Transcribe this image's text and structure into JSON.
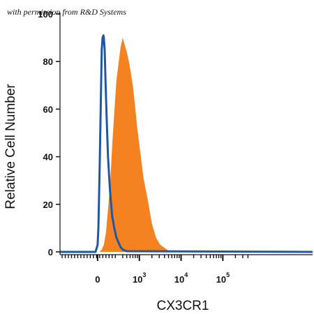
{
  "chart_data": {
    "type": "area",
    "credit": "with permission from R&D Systems",
    "xlabel": "CX3CR1",
    "ylabel": "Relative Cell Number",
    "ylim": [
      0,
      100
    ],
    "y_ticks": [
      0,
      20,
      40,
      60,
      80,
      100
    ],
    "x_scale": "biexponential",
    "xlim": [
      -0.9,
      5.15
    ],
    "x_ticks": [
      {
        "base": "0",
        "exp": "",
        "pos": 0
      },
      {
        "base": "10",
        "exp": "3",
        "pos": 1
      },
      {
        "base": "10",
        "exp": "4",
        "pos": 2
      },
      {
        "base": "10",
        "exp": "5",
        "pos": 3
      }
    ],
    "series": [
      {
        "kind": "filled",
        "color": "#f58220",
        "x": [
          -0.9,
          0.05,
          0.1,
          0.15,
          0.2,
          0.3,
          0.35,
          0.45,
          0.55,
          0.6,
          0.65,
          0.7,
          0.75,
          0.8,
          0.85,
          0.9,
          0.95,
          1.0,
          1.05,
          1.1,
          1.2,
          1.3,
          1.4,
          1.5,
          1.7,
          5.15
        ],
        "y": [
          0,
          0,
          1,
          3,
          8,
          28,
          45,
          72,
          86,
          90,
          87,
          84,
          80,
          75,
          69,
          61,
          52,
          45,
          38,
          31,
          22,
          12,
          6,
          3,
          0.5,
          0
        ]
      },
      {
        "kind": "outline",
        "color": "#1f57a5",
        "x": [
          -0.9,
          -0.05,
          0.0,
          0.02,
          0.05,
          0.08,
          0.1,
          0.12,
          0.14,
          0.15,
          0.17,
          0.19,
          0.22,
          0.25,
          0.3,
          0.35,
          0.4,
          0.45,
          0.5,
          0.55,
          0.6,
          0.7,
          5.15
        ],
        "y": [
          0,
          0,
          3,
          10,
          35,
          65,
          85,
          90,
          91,
          90,
          85,
          72,
          55,
          40,
          25,
          15,
          10,
          6,
          4,
          2,
          1,
          0.3,
          0
        ]
      }
    ]
  }
}
